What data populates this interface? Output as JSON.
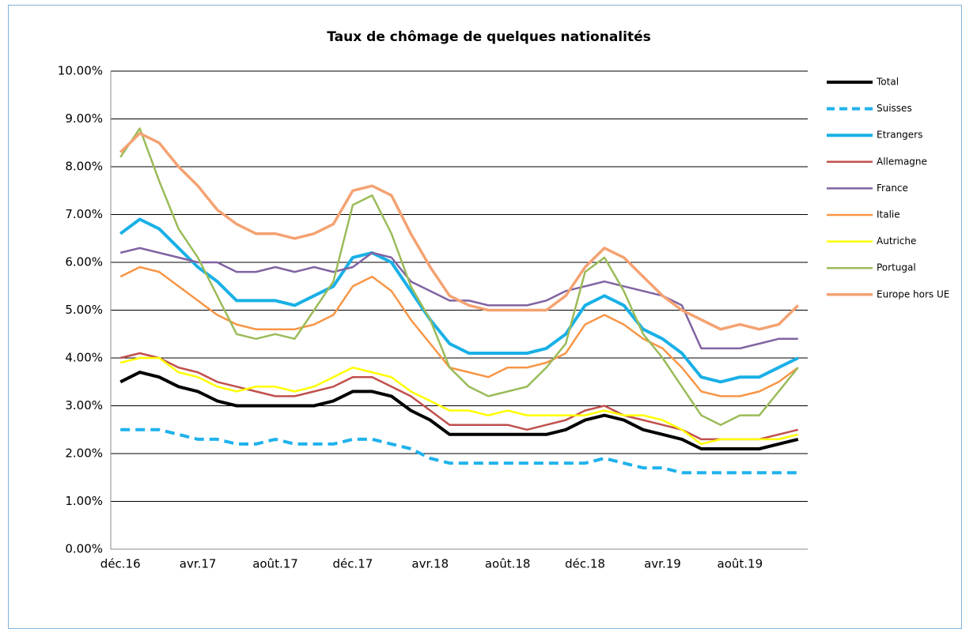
{
  "chart_data": {
    "type": "line",
    "title": "Taux de chômage de quelques nationalités",
    "categories": [
      "déc.16",
      null,
      null,
      null,
      "avr.17",
      null,
      null,
      null,
      "août.17",
      null,
      null,
      null,
      "déc.17",
      null,
      null,
      null,
      "avr.18",
      null,
      null,
      null,
      "août.18",
      null,
      null,
      null,
      "déc.18",
      null,
      null,
      null,
      "avr.19",
      null,
      null,
      null,
      "août.19",
      null,
      null,
      null
    ],
    "ylim": [
      0,
      10
    ],
    "yticks": [
      {
        "value": 0,
        "label": "0.00%"
      },
      {
        "value": 1,
        "label": "1.00%"
      },
      {
        "value": 2,
        "label": "2.00%"
      },
      {
        "value": 3,
        "label": "3.00%"
      },
      {
        "value": 4,
        "label": "4.00%"
      },
      {
        "value": 5,
        "label": "5.00%"
      },
      {
        "value": 6,
        "label": "6.00%"
      },
      {
        "value": 7,
        "label": "7.00%"
      },
      {
        "value": 8,
        "label": "8.00%"
      },
      {
        "value": 9,
        "label": "9.00%"
      },
      {
        "value": 10,
        "label": "10.00%"
      }
    ],
    "grid": true,
    "legend": "right",
    "series": [
      {
        "name": "Total",
        "color": "#000000",
        "width": 4,
        "values": [
          3.5,
          3.7,
          3.6,
          3.4,
          3.3,
          3.1,
          3.0,
          3.0,
          3.0,
          3.0,
          3.0,
          3.1,
          3.3,
          3.3,
          3.2,
          2.9,
          2.7,
          2.4,
          2.4,
          2.4,
          2.4,
          2.4,
          2.4,
          2.5,
          2.7,
          2.8,
          2.7,
          2.5,
          2.4,
          2.3,
          2.1,
          2.1,
          2.1,
          2.1,
          2.2,
          2.3
        ]
      },
      {
        "name": "Suisses",
        "color": "#1fb2ec",
        "width": 4,
        "dashed": true,
        "values": [
          2.5,
          2.5,
          2.5,
          2.4,
          2.3,
          2.3,
          2.2,
          2.2,
          2.3,
          2.2,
          2.2,
          2.2,
          2.3,
          2.3,
          2.2,
          2.1,
          1.9,
          1.8,
          1.8,
          1.8,
          1.8,
          1.8,
          1.8,
          1.8,
          1.8,
          1.9,
          1.8,
          1.7,
          1.7,
          1.6,
          1.6,
          1.6,
          1.6,
          1.6,
          1.6,
          1.6
        ]
      },
      {
        "name": "Etrangers",
        "color": "#19b0e6",
        "width": 4,
        "values": [
          6.6,
          6.9,
          6.7,
          6.3,
          5.9,
          5.6,
          5.2,
          5.2,
          5.2,
          5.1,
          5.3,
          5.5,
          6.1,
          6.2,
          6.0,
          5.4,
          4.8,
          4.3,
          4.1,
          4.1,
          4.1,
          4.1,
          4.2,
          4.5,
          5.1,
          5.3,
          5.1,
          4.6,
          4.4,
          4.1,
          3.6,
          3.5,
          3.6,
          3.6,
          3.8,
          4.0
        ]
      },
      {
        "name": "Allemagne",
        "color": "#c0504d",
        "width": 2.5,
        "values": [
          4.0,
          4.1,
          4.0,
          3.8,
          3.7,
          3.5,
          3.4,
          3.3,
          3.2,
          3.2,
          3.3,
          3.4,
          3.6,
          3.6,
          3.4,
          3.2,
          2.9,
          2.6,
          2.6,
          2.6,
          2.6,
          2.5,
          2.6,
          2.7,
          2.9,
          3.0,
          2.8,
          2.7,
          2.6,
          2.5,
          2.3,
          2.3,
          2.3,
          2.3,
          2.4,
          2.5
        ]
      },
      {
        "name": "France",
        "color": "#8064a2",
        "width": 2.5,
        "values": [
          6.2,
          6.3,
          6.2,
          6.1,
          6.0,
          6.0,
          5.8,
          5.8,
          5.9,
          5.8,
          5.9,
          5.8,
          5.9,
          6.2,
          6.1,
          5.6,
          5.4,
          5.2,
          5.2,
          5.1,
          5.1,
          5.1,
          5.2,
          5.4,
          5.5,
          5.6,
          5.5,
          5.4,
          5.3,
          5.1,
          4.2,
          4.2,
          4.2,
          4.3,
          4.4,
          4.4
        ]
      },
      {
        "name": "Italie",
        "color": "#f79646",
        "width": 2.5,
        "values": [
          5.7,
          5.9,
          5.8,
          5.5,
          5.2,
          4.9,
          4.7,
          4.6,
          4.6,
          4.6,
          4.7,
          4.9,
          5.5,
          5.7,
          5.4,
          4.8,
          4.3,
          3.8,
          3.7,
          3.6,
          3.8,
          3.8,
          3.9,
          4.1,
          4.7,
          4.9,
          4.7,
          4.4,
          4.2,
          3.8,
          3.3,
          3.2,
          3.2,
          3.3,
          3.5,
          3.8
        ]
      },
      {
        "name": "Autriche",
        "color": "#ffff00",
        "width": 2.5,
        "values": [
          3.9,
          4.0,
          4.0,
          3.7,
          3.6,
          3.4,
          3.3,
          3.4,
          3.4,
          3.3,
          3.4,
          3.6,
          3.8,
          3.7,
          3.6,
          3.3,
          3.1,
          2.9,
          2.9,
          2.8,
          2.9,
          2.8,
          2.8,
          2.8,
          2.8,
          2.9,
          2.8,
          2.8,
          2.7,
          2.5,
          2.2,
          2.3,
          2.3,
          2.3,
          2.3,
          2.4
        ]
      },
      {
        "name": "Portugal",
        "color": "#9bbb59",
        "width": 2.5,
        "values": [
          8.2,
          8.8,
          7.7,
          6.7,
          6.1,
          5.3,
          4.5,
          4.4,
          4.5,
          4.4,
          5.0,
          5.6,
          7.2,
          7.4,
          6.6,
          5.5,
          4.8,
          3.8,
          3.4,
          3.2,
          3.3,
          3.4,
          3.8,
          4.3,
          5.8,
          6.1,
          5.4,
          4.5,
          4.0,
          3.4,
          2.8,
          2.6,
          2.8,
          2.8,
          3.3,
          3.8
        ]
      },
      {
        "name": "Europe hors UE",
        "color": "#f4a272",
        "width": 3.5,
        "values": [
          8.3,
          8.7,
          8.5,
          8.0,
          7.6,
          7.1,
          6.8,
          6.6,
          6.6,
          6.5,
          6.6,
          6.8,
          7.5,
          7.6,
          7.4,
          6.6,
          5.9,
          5.3,
          5.1,
          5.0,
          5.0,
          5.0,
          5.0,
          5.3,
          5.9,
          6.3,
          6.1,
          5.7,
          5.3,
          5.0,
          4.8,
          4.6,
          4.7,
          4.6,
          4.7,
          5.1
        ]
      }
    ]
  }
}
